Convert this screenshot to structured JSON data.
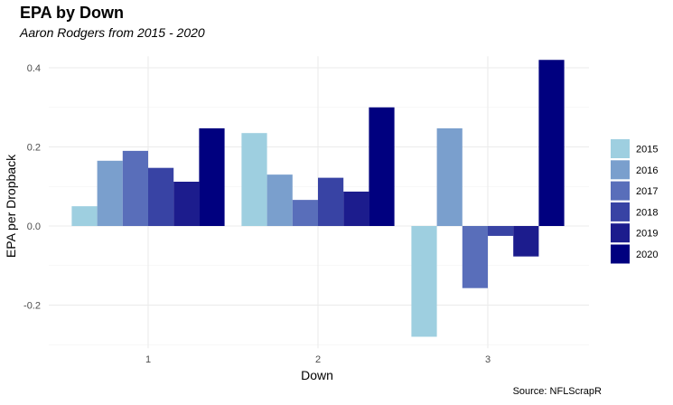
{
  "title": "EPA by Down",
  "subtitle": "Aaron Rodgers from 2015 - 2020",
  "caption": "Source: NFLScrapR",
  "chart_data": {
    "type": "bar",
    "categories": [
      "1",
      "2",
      "3"
    ],
    "xlabel": "Down",
    "ylabel": "EPA per Dropback",
    "ylim": [
      -0.3,
      0.42
    ],
    "yticks": [
      -0.2,
      0.0,
      0.2,
      0.4
    ],
    "ytick_labels": [
      "-0.2",
      "0.0",
      "0.2",
      "0.4"
    ],
    "grid": true,
    "legend_position": "right",
    "series": [
      {
        "name": "2015",
        "color": "#9ecfe0",
        "values": [
          0.05,
          0.235,
          -0.28
        ]
      },
      {
        "name": "2016",
        "color": "#7a9fcd",
        "values": [
          0.165,
          0.13,
          0.247
        ]
      },
      {
        "name": "2017",
        "color": "#596eba",
        "values": [
          0.19,
          0.066,
          -0.157
        ]
      },
      {
        "name": "2018",
        "color": "#3843a4",
        "values": [
          0.147,
          0.122,
          -0.025
        ]
      },
      {
        "name": "2019",
        "color": "#1c1c8d",
        "values": [
          0.112,
          0.087,
          -0.077
        ]
      },
      {
        "name": "2020",
        "color": "#00007f",
        "values": [
          0.247,
          0.3,
          0.42
        ]
      }
    ]
  }
}
